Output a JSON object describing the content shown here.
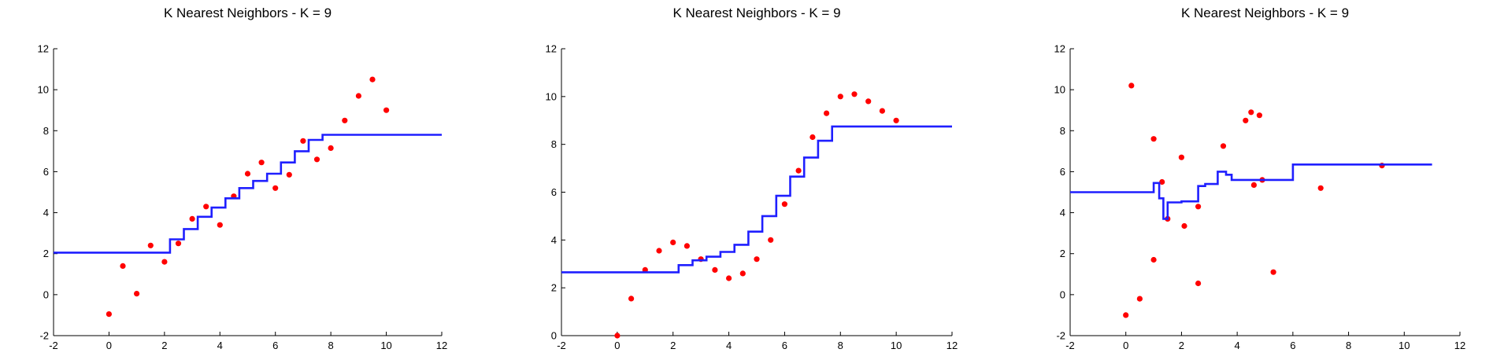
{
  "colors": {
    "points": "#ff0000",
    "line": "#1f1fff",
    "axis": "#000000"
  },
  "chart_data": [
    {
      "type": "scatter",
      "title": "K Nearest Neighbors - K = 9",
      "xlim": [
        -2,
        12
      ],
      "ylim": [
        -2,
        12
      ],
      "xticks": [
        "-2",
        "0",
        "2",
        "4",
        "6",
        "8",
        "10",
        "12"
      ],
      "yticks": [
        "-2",
        "0",
        "2",
        "4",
        "6",
        "8",
        "10",
        "12"
      ],
      "grid": false,
      "series": [
        {
          "kind": "points",
          "x": [
            0,
            0.5,
            1,
            1.5,
            2,
            2.5,
            3,
            3.5,
            4,
            4.5,
            5,
            5.5,
            6,
            6.5,
            7,
            7.5,
            8,
            8.5,
            9,
            9.5,
            10
          ],
          "y": [
            -0.95,
            1.4,
            0.05,
            2.4,
            1.6,
            2.5,
            3.7,
            4.3,
            3.4,
            4.8,
            5.9,
            6.45,
            5.2,
            5.85,
            7.5,
            6.6,
            7.15,
            8.5,
            9.7,
            10.5,
            9.0
          ]
        },
        {
          "kind": "step",
          "x": [
            -2.0,
            2.2,
            2.2,
            2.7,
            2.7,
            3.2,
            3.2,
            3.7,
            3.7,
            4.2,
            4.2,
            4.7,
            4.7,
            5.2,
            5.2,
            5.7,
            5.7,
            6.2,
            6.2,
            6.7,
            6.7,
            7.2,
            7.2,
            7.7,
            7.7,
            12.0
          ],
          "y": [
            2.05,
            2.05,
            2.7,
            2.7,
            3.2,
            3.2,
            3.8,
            3.8,
            4.25,
            4.25,
            4.7,
            4.7,
            5.2,
            5.2,
            5.55,
            5.55,
            5.9,
            5.9,
            6.45,
            6.45,
            7.0,
            7.0,
            7.55,
            7.55,
            7.8,
            7.8
          ]
        }
      ]
    },
    {
      "type": "scatter",
      "title": "K Nearest Neighbors - K = 9",
      "xlim": [
        -2,
        12
      ],
      "ylim": [
        0,
        12
      ],
      "xticks": [
        "-2",
        "0",
        "2",
        "4",
        "6",
        "8",
        "10",
        "12"
      ],
      "yticks": [
        "0",
        "2",
        "4",
        "6",
        "8",
        "10",
        "12"
      ],
      "grid": false,
      "series": [
        {
          "kind": "points",
          "x": [
            0,
            0.5,
            1,
            1.5,
            2,
            2.5,
            3,
            3.5,
            4,
            4.5,
            5,
            5.5,
            6,
            6.5,
            7,
            7.5,
            8,
            8.5,
            9,
            9.5,
            10
          ],
          "y": [
            0.0,
            1.55,
            2.75,
            3.55,
            3.9,
            3.75,
            3.2,
            2.75,
            2.4,
            2.6,
            3.2,
            4.0,
            5.5,
            6.9,
            8.3,
            9.3,
            10.0,
            10.1,
            9.8,
            9.4,
            9.0
          ]
        },
        {
          "kind": "step",
          "x": [
            -2.0,
            2.2,
            2.2,
            2.7,
            2.7,
            3.2,
            3.2,
            3.7,
            3.7,
            4.2,
            4.2,
            4.7,
            4.7,
            5.2,
            5.2,
            5.7,
            5.7,
            6.2,
            6.2,
            6.7,
            6.7,
            7.2,
            7.2,
            7.7,
            7.7,
            12.0
          ],
          "y": [
            2.65,
            2.65,
            2.95,
            2.95,
            3.15,
            3.15,
            3.3,
            3.3,
            3.5,
            3.5,
            3.8,
            3.8,
            4.35,
            4.35,
            5.0,
            5.0,
            5.85,
            5.85,
            6.65,
            6.65,
            7.45,
            7.45,
            8.15,
            8.15,
            8.75,
            8.75
          ]
        }
      ]
    },
    {
      "type": "scatter",
      "title": "K Nearest Neighbors - K = 9",
      "xlim": [
        -2,
        12
      ],
      "ylim": [
        -2,
        12
      ],
      "xticks": [
        "-2",
        "0",
        "2",
        "4",
        "6",
        "8",
        "10",
        "12"
      ],
      "yticks": [
        "-2",
        "0",
        "2",
        "4",
        "6",
        "8",
        "10",
        "12"
      ],
      "grid": false,
      "series": [
        {
          "kind": "points",
          "x": [
            0,
            0.2,
            0.5,
            1,
            1,
            1.3,
            1.5,
            2,
            2.1,
            2.6,
            2.6,
            3.5,
            4.3,
            4.5,
            4.6,
            4.8,
            4.9,
            5.3,
            7.0,
            9.2
          ],
          "y": [
            -1.0,
            10.2,
            -0.2,
            1.7,
            7.6,
            5.5,
            3.7,
            6.7,
            3.35,
            0.55,
            4.3,
            7.25,
            8.5,
            8.9,
            5.35,
            8.75,
            5.6,
            1.1,
            5.2,
            6.3
          ]
        },
        {
          "kind": "step",
          "x": [
            -2.0,
            1.0,
            1.0,
            1.2,
            1.2,
            1.35,
            1.35,
            1.5,
            1.5,
            2.0,
            2.0,
            2.6,
            2.6,
            2.85,
            2.85,
            3.3,
            3.3,
            3.6,
            3.6,
            3.8,
            3.8,
            6.0,
            6.0,
            11.0
          ],
          "y": [
            5.0,
            5.0,
            5.45,
            5.45,
            4.7,
            4.7,
            3.7,
            3.7,
            4.5,
            4.5,
            4.55,
            4.55,
            5.3,
            5.3,
            5.4,
            5.4,
            6.0,
            6.0,
            5.85,
            5.85,
            5.6,
            5.6,
            6.35,
            6.35
          ]
        }
      ]
    }
  ]
}
